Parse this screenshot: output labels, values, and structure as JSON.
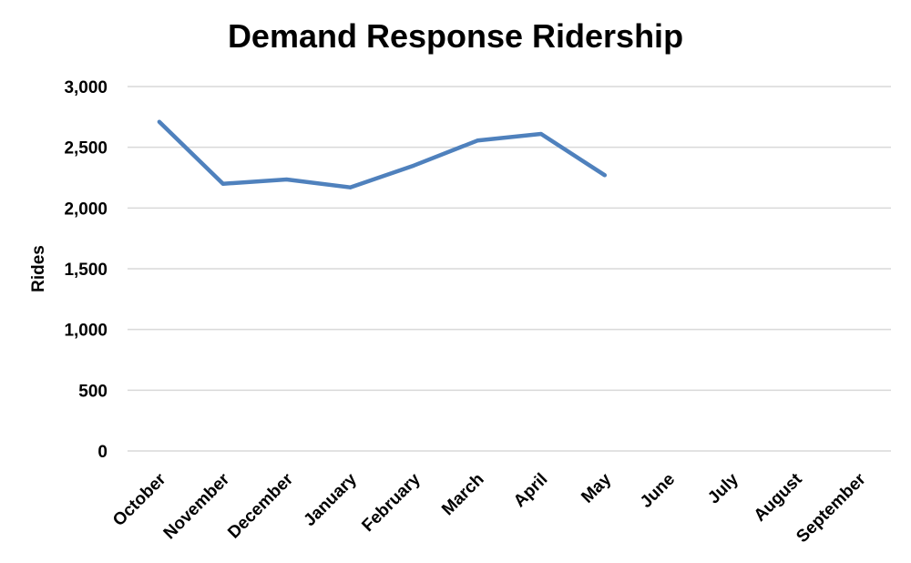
{
  "chart_data": {
    "type": "line",
    "title": "Demand Response Ridership",
    "xlabel": "",
    "ylabel": "Rides",
    "categories": [
      "October",
      "November",
      "December",
      "January",
      "February",
      "March",
      "April",
      "May",
      "June",
      "July",
      "August",
      "September"
    ],
    "series": [
      {
        "values": [
          2710,
          2200,
          2235,
          2170,
          2350,
          2555,
          2610,
          2270,
          null,
          null,
          null,
          null
        ],
        "color": "#4f81bd"
      }
    ],
    "ylim": [
      0,
      3000
    ],
    "yticks": [
      0,
      500,
      1000,
      1500,
      2000,
      2500,
      3000
    ],
    "ytick_labels": [
      "0",
      "500",
      "1,000",
      "1,500",
      "2,000",
      "2,500",
      "3,000"
    ],
    "grid": true,
    "legend": "none"
  }
}
